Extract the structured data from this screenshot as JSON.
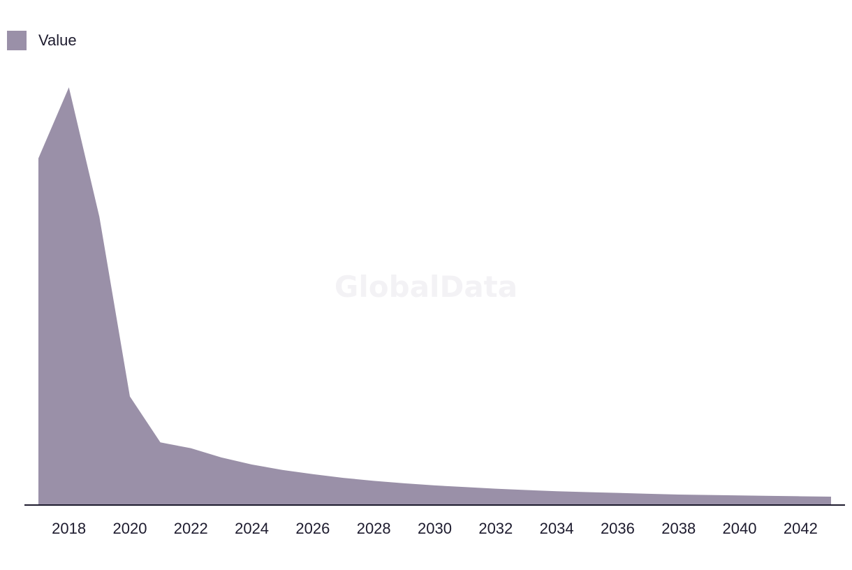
{
  "legend": {
    "label": "Value",
    "color": "#9a90a8"
  },
  "watermark": "GlobalData",
  "axis_color": "#1d1b2e",
  "chart_data": {
    "type": "area",
    "title": "",
    "xlabel": "",
    "ylabel": "",
    "x": [
      2017,
      2018,
      2019,
      2020,
      2021,
      2022,
      2023,
      2024,
      2025,
      2026,
      2027,
      2028,
      2029,
      2030,
      2031,
      2032,
      2033,
      2034,
      2035,
      2036,
      2037,
      2038,
      2039,
      2040,
      2041,
      2042,
      2043
    ],
    "xticks": [
      2018,
      2020,
      2022,
      2024,
      2026,
      2028,
      2030,
      2032,
      2034,
      2036,
      2038,
      2040,
      2042
    ],
    "series": [
      {
        "name": "Value",
        "values": [
          83,
          100,
          69,
          26,
          15,
          13.6,
          11.4,
          9.7,
          8.4,
          7.4,
          6.5,
          5.8,
          5.2,
          4.7,
          4.3,
          3.9,
          3.6,
          3.3,
          3.1,
          2.9,
          2.7,
          2.5,
          2.4,
          2.3,
          2.2,
          2.1,
          2.0
        ]
      }
    ],
    "ylim": [
      0,
      100
    ],
    "grid": false,
    "y_axis_shown": false,
    "legend_position": "top-left"
  }
}
